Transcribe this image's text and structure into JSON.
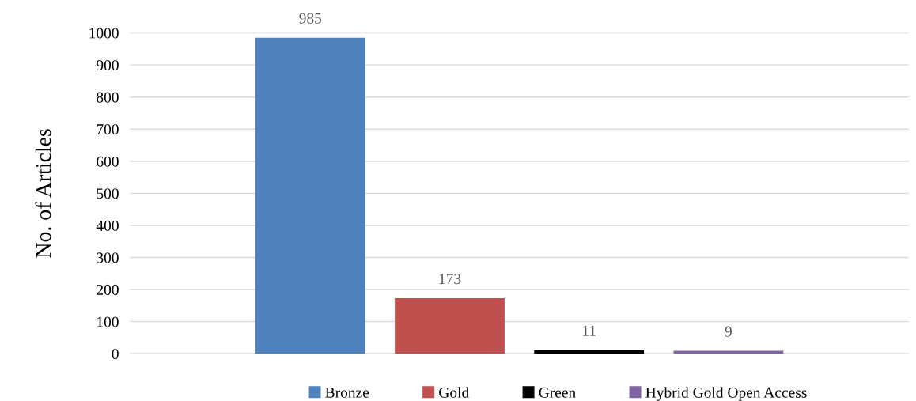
{
  "chart_data": {
    "type": "bar",
    "ylabel": "No. of Articles",
    "categories": [
      null
    ],
    "series": [
      {
        "name": "Bronze",
        "color": "#4f81bd",
        "values": [
          985
        ]
      },
      {
        "name": "Gold",
        "color": "#c0504d",
        "values": [
          173
        ]
      },
      {
        "name": "Green",
        "color": "#000000",
        "values": [
          11
        ]
      },
      {
        "name": "Hybrid Gold Open Access",
        "color": "#8064a2",
        "values": [
          9
        ]
      }
    ],
    "ylim": [
      0,
      1000
    ],
    "yticks": [
      0,
      100,
      200,
      300,
      400,
      500,
      600,
      700,
      800,
      900,
      1000
    ],
    "grid": "y",
    "legend": "bottom",
    "data_labels": true
  }
}
